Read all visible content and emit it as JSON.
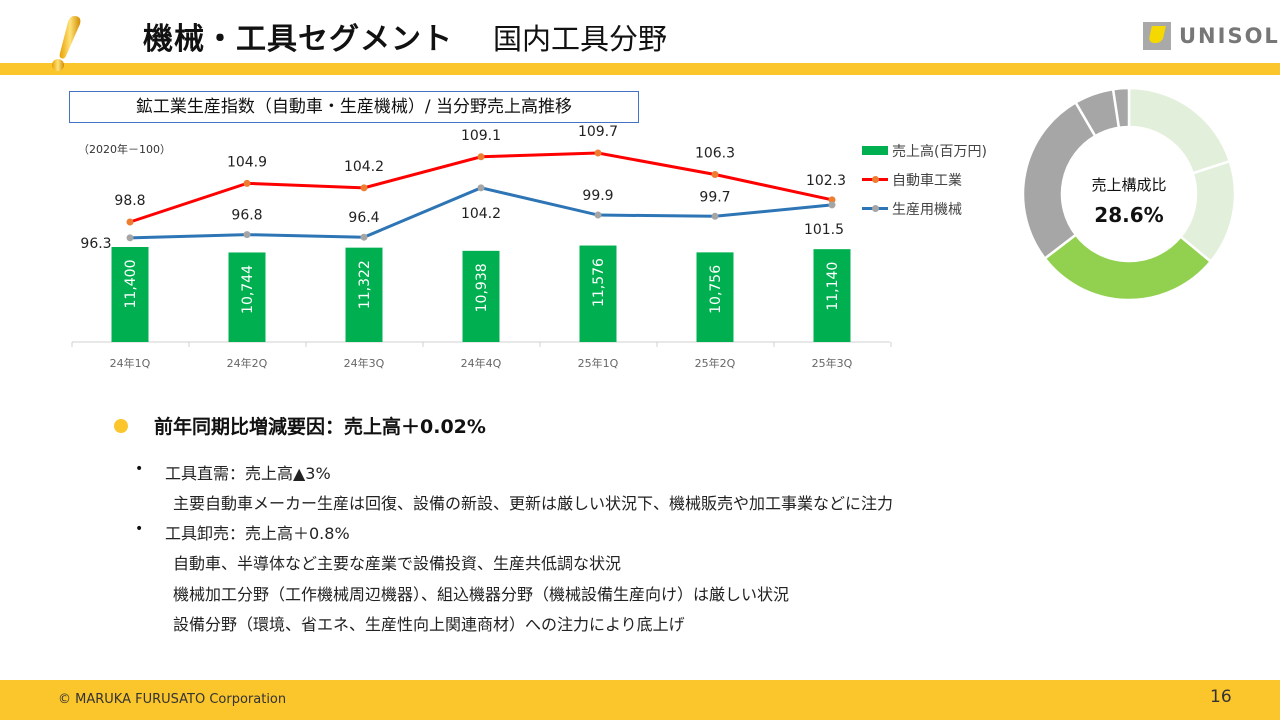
{
  "header": {
    "title_main": "機械・工具セグメント",
    "title_sub": "国内工具分野",
    "logo_text": "UNISOL",
    "accent_color": "#FBC52C"
  },
  "chart_title": "鉱工業生産指数（自動車・生産機械）/ 当分野売上高推移",
  "donut": {
    "label": "売上構成比",
    "value": "28.6%"
  },
  "chart_data": [
    {
      "type": "bar+line",
      "base_note": "（2020年－100）",
      "categories": [
        "24年1Q",
        "24年2Q",
        "24年3Q",
        "24年4Q",
        "25年1Q",
        "25年2Q",
        "25年3Q"
      ],
      "series": [
        {
          "name": "売上高(百万円)",
          "type": "bar",
          "color": "#00B050",
          "values": [
            11400,
            10744,
            11322,
            10938,
            11576,
            10756,
            11140
          ],
          "labels": [
            "11,400",
            "10,744",
            "11,322",
            "10,938",
            "11,576",
            "10,756",
            "11,140"
          ]
        },
        {
          "name": "自動車工業",
          "type": "line",
          "color": "#FF0000",
          "marker_color": "#ED7D31",
          "values": [
            98.8,
            104.9,
            104.2,
            109.1,
            109.7,
            106.3,
            102.3
          ]
        },
        {
          "name": "生産用機械",
          "type": "line",
          "color": "#2E75B6",
          "marker_color": "#A5A5A5",
          "values": [
            96.3,
            96.8,
            96.4,
            104.2,
            99.9,
            99.7,
            101.5
          ]
        }
      ],
      "legend": "right",
      "grid": false
    },
    {
      "type": "pie",
      "donut": true,
      "highlight": "28.6%",
      "values": [
        20.0,
        16.0,
        28.6,
        27.0,
        6.0,
        2.4
      ],
      "colors": [
        "#E2EFDA",
        "#E2EFDA",
        "#92D050",
        "#A6A6A6",
        "#A6A6A6",
        "#A6A6A6"
      ]
    }
  ],
  "summary": {
    "heading": "前年同期比増減要因：売上高＋0.02%",
    "items": [
      {
        "title": "工具直需：売上高▲3%",
        "details": [
          "主要自動車メーカー生産は回復、設備の新設、更新は厳しい状況下、機械販売や加工事業などに注力"
        ]
      },
      {
        "title": "工具卸売：売上高＋0.8%",
        "details": [
          "自動車、半導体など主要な産業で設備投資、生産共低調な状況",
          "機械加工分野（工作機械周辺機器）、組込機器分野（機械設備生産向け）は厳しい状況",
          "設備分野（環境、省エネ、生産性向上関連商材）への注力により底上げ"
        ]
      }
    ]
  },
  "footer": {
    "copyright": "© MARUKA FURUSATO Corporation",
    "page_number": "16"
  }
}
